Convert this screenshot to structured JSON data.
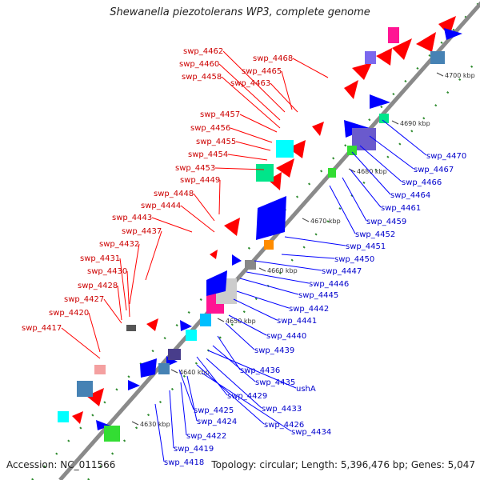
{
  "title": "Shewanella piezotolerans WP3, complete genome",
  "footer": {
    "accession": "Accession: NC_011566",
    "summary": "Topology: circular; Length: 5,396,476 bp; Genes: 5,047"
  },
  "scale_ticks": [
    {
      "label": "4630 kbp",
      "kbp": 4630
    },
    {
      "label": "4640 kbp",
      "kbp": 4640
    },
    {
      "label": "4650 kbp",
      "kbp": 4650
    },
    {
      "label": "4660 kbp",
      "kbp": 4660
    },
    {
      "label": "4670 kbp",
      "kbp": 4670
    },
    {
      "label": "4680 kbp",
      "kbp": 4680
    },
    {
      "label": "4690 kbp",
      "kbp": 4690
    },
    {
      "label": "4700 kbp",
      "kbp": 4700
    }
  ],
  "left_genes": [
    "swp_4468",
    "swp_4462",
    "swp_4465",
    "swp_4460",
    "swp_4458",
    "swp_4463",
    "swp_4457",
    "swp_4456",
    "swp_4455",
    "swp_4454",
    "swp_4453",
    "swp_4449",
    "swp_4448",
    "swp_4444",
    "swp_4443",
    "swp_4437",
    "swp_4432",
    "swp_4431",
    "swp_4430",
    "swp_4428",
    "swp_4427",
    "swp_4420",
    "swp_4417"
  ],
  "right_genes": [
    "swp_4470",
    "swp_4467",
    "swp_4466",
    "swp_4464",
    "swp_4461",
    "swp_4459",
    "swp_4452",
    "swp_4451",
    "swp_4450",
    "swp_4447",
    "swp_4446",
    "swp_4445",
    "swp_4442",
    "swp_4441",
    "swp_4440",
    "swp_4439",
    "swp_4436",
    "swp_4435",
    "ushA",
    "swp_4433",
    "swp_4429",
    "swp_4426",
    "swp_4425",
    "swp_4434",
    "swp_4424",
    "swp_4422",
    "swp_4419",
    "swp_4418"
  ],
  "colors": {
    "backbone": "#8a8a8a",
    "forward": "#ff0000",
    "reverse": "#0000ff",
    "forward_label": "#cc0000",
    "reverse_label": "#0000cc",
    "gc_dot": "#2e8b2e"
  }
}
